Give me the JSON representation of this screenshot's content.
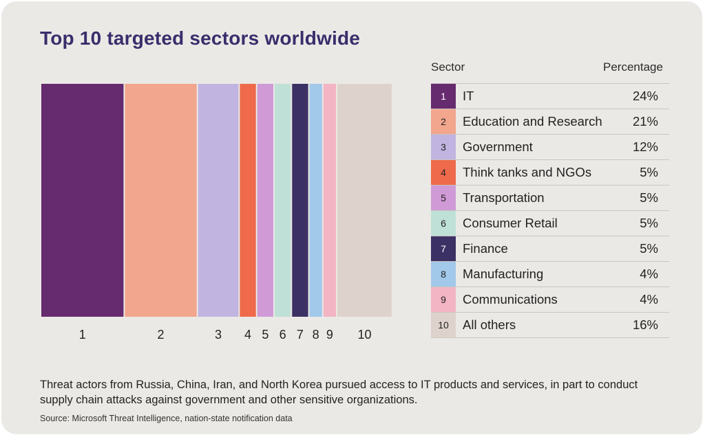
{
  "title": "Top 10 targeted sectors worldwide",
  "table": {
    "header_sector": "Sector",
    "header_percentage": "Percentage",
    "rows": [
      {
        "rank": "1",
        "sector": "IT",
        "pct": "24%",
        "color": "#662a6e",
        "numColor": "#ffffff"
      },
      {
        "rank": "2",
        "sector": "Education and Research",
        "pct": "21%",
        "color": "#f2a68d",
        "numColor": "#222222"
      },
      {
        "rank": "3",
        "sector": "Government",
        "pct": "12%",
        "color": "#c1b4e0",
        "numColor": "#222222"
      },
      {
        "rank": "4",
        "sector": "Think tanks and NGOs",
        "pct": "5%",
        "color": "#ee6a4a",
        "numColor": "#222222"
      },
      {
        "rank": "5",
        "sector": "Transportation",
        "pct": "5%",
        "color": "#cf9ad6",
        "numColor": "#222222"
      },
      {
        "rank": "6",
        "sector": "Consumer Retail",
        "pct": "5%",
        "color": "#bfe0d7",
        "numColor": "#222222"
      },
      {
        "rank": "7",
        "sector": "Finance",
        "pct": "5%",
        "color": "#3c3164",
        "numColor": "#ffffff"
      },
      {
        "rank": "8",
        "sector": "Manufacturing",
        "pct": "4%",
        "color": "#a2c8ea",
        "numColor": "#222222"
      },
      {
        "rank": "9",
        "sector": "Communications",
        "pct": "4%",
        "color": "#f3b4c4",
        "numColor": "#222222"
      },
      {
        "rank": "10",
        "sector": "All others",
        "pct": "16%",
        "color": "#ded3cc",
        "numColor": "#222222"
      }
    ]
  },
  "caption": "Threat actors from Russia, China, Iran, and North Korea pursued access to IT products and services, in part to conduct supply chain attacks against government and other sensitive organizations.",
  "source": "Source: Microsoft Threat Intelligence, nation-state notification data",
  "chart_data": {
    "type": "bar",
    "subtype": "stacked-100-horizontal-strip",
    "title": "Top 10 targeted sectors worldwide",
    "categories": [
      "1",
      "2",
      "3",
      "4",
      "5",
      "6",
      "7",
      "8",
      "9",
      "10"
    ],
    "labels": [
      "IT",
      "Education and Research",
      "Government",
      "Think tanks and NGOs",
      "Transportation",
      "Consumer Retail",
      "Finance",
      "Manufacturing",
      "Communications",
      "All others"
    ],
    "values": [
      24,
      21,
      12,
      5,
      5,
      5,
      5,
      4,
      4,
      16
    ],
    "unit": "%",
    "colors": [
      "#662a6e",
      "#f2a68d",
      "#c1b4e0",
      "#ee6a4a",
      "#cf9ad6",
      "#bfe0d7",
      "#3c3164",
      "#a2c8ea",
      "#f3b4c4",
      "#ded3cc"
    ]
  }
}
